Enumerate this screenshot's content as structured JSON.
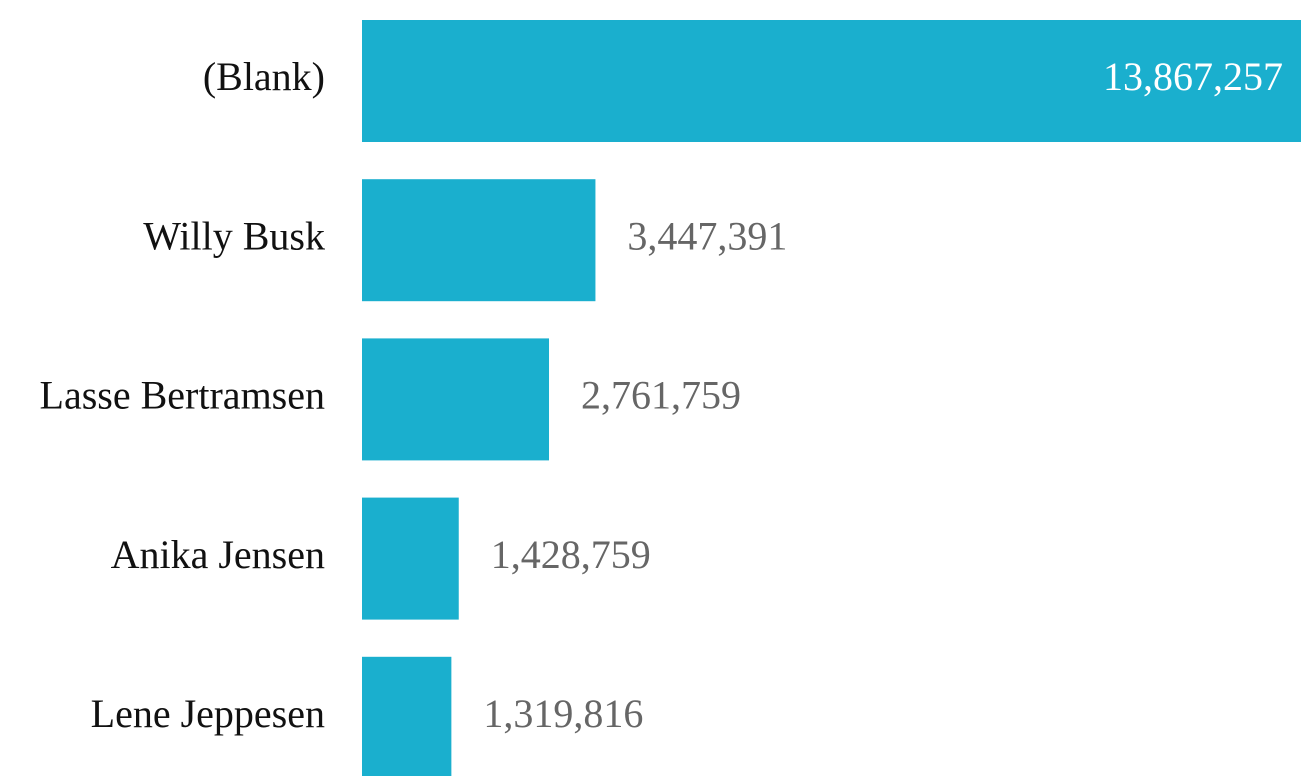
{
  "chart_data": {
    "type": "bar",
    "orientation": "horizontal",
    "categories": [
      "(Blank)",
      "Willy Busk",
      "Lasse Bertramsen",
      "Anika Jensen",
      "Lene Jeppesen"
    ],
    "values": [
      13867257,
      3447391,
      2761759,
      1428759,
      1319816
    ],
    "value_labels": [
      "13,867,257",
      "3,447,391",
      "2,761,759",
      "1,428,759",
      "1,319,816"
    ],
    "color": "#1aafce"
  }
}
